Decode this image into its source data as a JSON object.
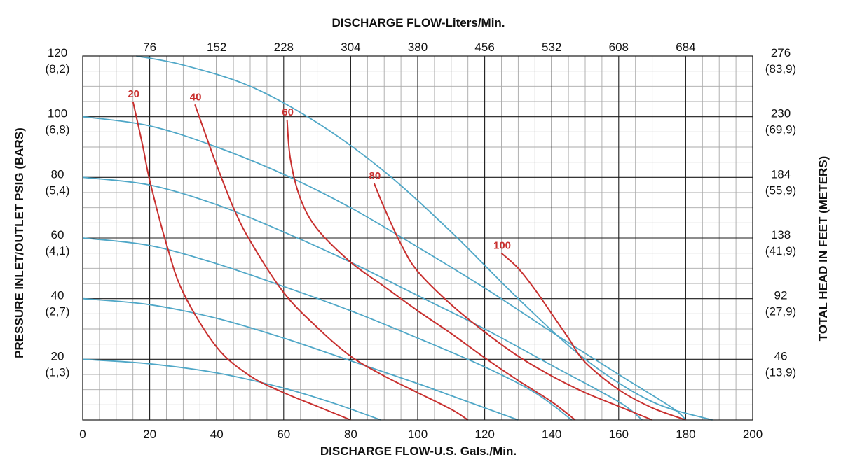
{
  "chart_data": {
    "type": "line",
    "title": "",
    "xlabel": "DISCHARGE FLOW-U.S. Gals./Min.",
    "x2label": "DISCHARGE FLOW-Liters/Min.",
    "ylabel": "PRESSURE INLET/OUTLET PSIG (BARS)",
    "y2label": "TOTAL HEAD IN FEET (METERS)",
    "xlim": [
      0,
      200
    ],
    "ylim": [
      0,
      120
    ],
    "grid": true,
    "x_ticks": [
      {
        "value": 0,
        "label": "0"
      },
      {
        "value": 20,
        "label": "20"
      },
      {
        "value": 40,
        "label": "40"
      },
      {
        "value": 60,
        "label": "60"
      },
      {
        "value": 80,
        "label": "80"
      },
      {
        "value": 100,
        "label": "100"
      },
      {
        "value": 120,
        "label": "120"
      },
      {
        "value": 140,
        "label": "140"
      },
      {
        "value": 160,
        "label": "160"
      },
      {
        "value": 180,
        "label": "180"
      },
      {
        "value": 200,
        "label": "200"
      }
    ],
    "x2_ticks": [
      {
        "value": 20,
        "label": "76"
      },
      {
        "value": 40,
        "label": "152"
      },
      {
        "value": 60,
        "label": "228"
      },
      {
        "value": 80,
        "label": "304"
      },
      {
        "value": 100,
        "label": "380"
      },
      {
        "value": 120,
        "label": "456"
      },
      {
        "value": 140,
        "label": "532"
      },
      {
        "value": 160,
        "label": "608"
      },
      {
        "value": 180,
        "label": "684"
      }
    ],
    "y_ticks": [
      {
        "value": 120,
        "label": "120",
        "sub": "(8,2)"
      },
      {
        "value": 100,
        "label": "100",
        "sub": "(6,8)"
      },
      {
        "value": 80,
        "label": "80",
        "sub": "(5,4)"
      },
      {
        "value": 60,
        "label": "60",
        "sub": "(4,1)"
      },
      {
        "value": 40,
        "label": "40",
        "sub": "(2,7)"
      },
      {
        "value": 20,
        "label": "20",
        "sub": "(1,3)"
      }
    ],
    "y2_ticks": [
      {
        "value": 120,
        "label": "276",
        "sub": "(83,9)"
      },
      {
        "value": 100,
        "label": "230",
        "sub": "(69,9)"
      },
      {
        "value": 80,
        "label": "184",
        "sub": "(55,9)"
      },
      {
        "value": 60,
        "label": "138",
        "sub": "(41,9)"
      },
      {
        "value": 40,
        "label": "92",
        "sub": "(27,9)"
      },
      {
        "value": 20,
        "label": "46",
        "sub": "(13,9)"
      }
    ],
    "colors": {
      "inlet_pressure": "#4fa7c7",
      "air": "#c8302f",
      "grid_minor": "#a9a9a9",
      "grid_major": "#1a1a1a"
    },
    "inlet_pressure_curves": [
      {
        "name": "",
        "values": [
          [
            0,
            20
          ],
          [
            20,
            18.5
          ],
          [
            40,
            15.5
          ],
          [
            60,
            10.5
          ],
          [
            75,
            5.5
          ],
          [
            89,
            0
          ]
        ]
      },
      {
        "name": "",
        "values": [
          [
            0,
            40
          ],
          [
            20,
            38
          ],
          [
            40,
            33.5
          ],
          [
            60,
            27
          ],
          [
            80,
            19.5
          ],
          [
            100,
            12
          ],
          [
            115,
            6
          ],
          [
            130,
            0
          ]
        ]
      },
      {
        "name": "",
        "values": [
          [
            0,
            60
          ],
          [
            20,
            57.5
          ],
          [
            40,
            51.5
          ],
          [
            60,
            44
          ],
          [
            80,
            36
          ],
          [
            100,
            27
          ],
          [
            120,
            17.5
          ],
          [
            135,
            9
          ],
          [
            146,
            0
          ]
        ]
      },
      {
        "name": "",
        "values": [
          [
            0,
            80
          ],
          [
            20,
            77.5
          ],
          [
            40,
            71
          ],
          [
            60,
            62
          ],
          [
            80,
            52
          ],
          [
            100,
            41
          ],
          [
            120,
            30
          ],
          [
            140,
            18
          ],
          [
            160,
            6
          ],
          [
            167,
            0
          ]
        ]
      },
      {
        "name": "",
        "values": [
          [
            0,
            100
          ],
          [
            20,
            97
          ],
          [
            40,
            90
          ],
          [
            60,
            81
          ],
          [
            80,
            70
          ],
          [
            100,
            57
          ],
          [
            120,
            43.5
          ],
          [
            140,
            29
          ],
          [
            160,
            15
          ],
          [
            176,
            4
          ],
          [
            180,
            0
          ]
        ]
      },
      {
        "name": "",
        "values": [
          [
            16,
            120
          ],
          [
            30,
            117
          ],
          [
            50,
            110
          ],
          [
            70,
            98
          ],
          [
            90,
            82
          ],
          [
            110,
            62
          ],
          [
            130,
            40
          ],
          [
            150,
            20
          ],
          [
            170,
            6
          ],
          [
            188,
            0
          ]
        ]
      }
    ],
    "air_consumption_curves": [
      {
        "label": "20",
        "values": [
          [
            15,
            105
          ],
          [
            18,
            90
          ],
          [
            20,
            79
          ],
          [
            25,
            58
          ],
          [
            30,
            42
          ],
          [
            40,
            24
          ],
          [
            50,
            14.5
          ],
          [
            60,
            9
          ],
          [
            70,
            4.5
          ],
          [
            80,
            0
          ]
        ]
      },
      {
        "label": "40",
        "values": [
          [
            33.5,
            104
          ],
          [
            38,
            90
          ],
          [
            40,
            84
          ],
          [
            45,
            70
          ],
          [
            50,
            59
          ],
          [
            60,
            42
          ],
          [
            70,
            30.5
          ],
          [
            80,
            21
          ],
          [
            90,
            14.5
          ],
          [
            100,
            9
          ],
          [
            110,
            3.5
          ],
          [
            115,
            0
          ]
        ]
      },
      {
        "label": "60",
        "values": [
          [
            61,
            99
          ],
          [
            62,
            86
          ],
          [
            65,
            73
          ],
          [
            70,
            63
          ],
          [
            80,
            52
          ],
          [
            90,
            44
          ],
          [
            100,
            36
          ],
          [
            110,
            28.5
          ],
          [
            120,
            20.5
          ],
          [
            130,
            13
          ],
          [
            140,
            6
          ],
          [
            147,
            0
          ]
        ]
      },
      {
        "label": "80",
        "values": [
          [
            87,
            78
          ],
          [
            90,
            70
          ],
          [
            95,
            58
          ],
          [
            100,
            49
          ],
          [
            110,
            38
          ],
          [
            120,
            29
          ],
          [
            130,
            21
          ],
          [
            140,
            14.5
          ],
          [
            150,
            9
          ],
          [
            160,
            4.5
          ],
          [
            170,
            0
          ]
        ]
      },
      {
        "label": "100",
        "values": [
          [
            125,
            55
          ],
          [
            130,
            50
          ],
          [
            135,
            43
          ],
          [
            140,
            35
          ],
          [
            145,
            27
          ],
          [
            150,
            19
          ],
          [
            160,
            10
          ],
          [
            170,
            4
          ],
          [
            180,
            0
          ]
        ]
      }
    ]
  }
}
